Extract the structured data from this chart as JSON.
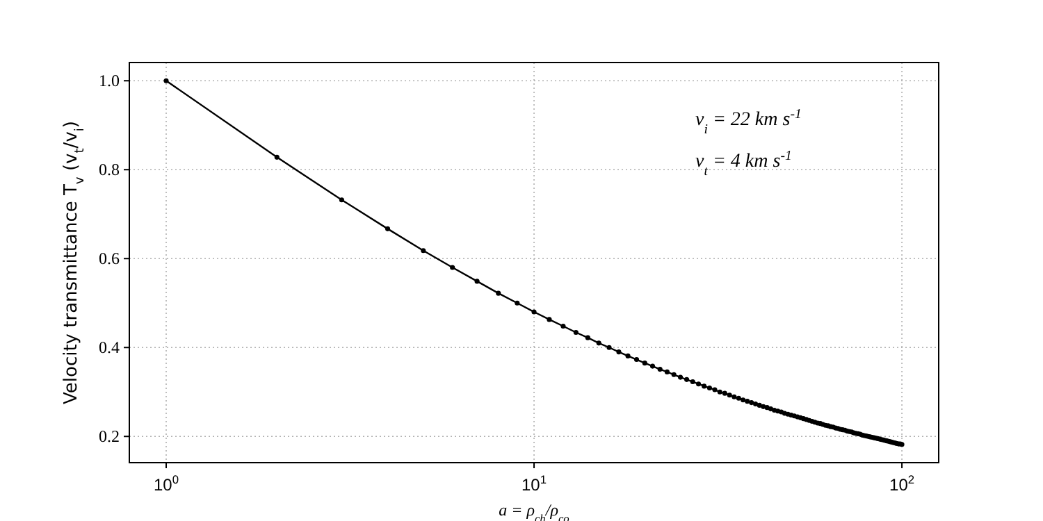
{
  "chart_data": {
    "type": "line",
    "xlabel": "a = ρ$_{ch}$/ρ$_{co}$",
    "ylabel": "Velocity transmittance T$_{v}$ (v$_{t}$/v$_{i}$)",
    "annotations": [
      "v$_{i}$ = 22 km s$^{-1}$",
      "v$_{t}$ = 4 km s$^{-1}$"
    ],
    "log": "x",
    "grid": true,
    "marker": "circle",
    "line_style": "solid",
    "xlim": [
      0.794,
      125.9
    ],
    "ylim": [
      0.141,
      1.041
    ],
    "xticks": [
      {
        "value": 1,
        "label": "10$^{0}$"
      },
      {
        "value": 10,
        "label": "10$^{1}$"
      },
      {
        "value": 100,
        "label": "10$^{2}$"
      }
    ],
    "yticks": [
      0.2,
      0.4,
      0.6,
      0.8,
      {
        "value": 1,
        "label": "1.0"
      }
    ],
    "x": [
      1,
      2,
      3,
      4,
      5,
      6,
      7,
      8,
      9,
      10,
      11,
      12,
      13,
      14,
      15,
      16,
      17,
      18,
      19,
      20,
      21,
      22,
      23,
      24,
      25,
      26,
      27,
      28,
      29,
      30,
      31,
      32,
      33,
      34,
      35,
      36,
      37,
      38,
      39,
      40,
      41,
      42,
      43,
      44,
      45,
      46,
      47,
      48,
      49,
      50,
      51,
      52,
      53,
      54,
      55,
      56,
      57,
      58,
      59,
      60,
      61,
      62,
      63,
      64,
      65,
      66,
      67,
      68,
      69,
      70,
      71,
      72,
      73,
      74,
      75,
      76,
      77,
      78,
      79,
      80,
      81,
      82,
      83,
      84,
      85,
      86,
      87,
      88,
      89,
      90,
      91,
      92,
      93,
      94,
      95,
      96,
      97,
      98,
      99,
      100
    ],
    "series": [
      {
        "color": "#000000",
        "values": [
          1.0,
          0.828,
          0.732,
          0.667,
          0.618,
          0.58,
          0.549,
          0.522,
          0.5,
          0.48,
          0.463,
          0.448,
          0.434,
          0.422,
          0.41,
          0.4,
          0.39,
          0.381,
          0.373,
          0.365,
          0.358,
          0.351,
          0.345,
          0.339,
          0.333,
          0.328,
          0.323,
          0.318,
          0.313,
          0.309,
          0.305,
          0.3,
          0.297,
          0.293,
          0.289,
          0.286,
          0.282,
          0.279,
          0.276,
          0.273,
          0.27,
          0.267,
          0.265,
          0.262,
          0.259,
          0.257,
          0.255,
          0.252,
          0.25,
          0.248,
          0.246,
          0.244,
          0.242,
          0.24,
          0.238,
          0.236,
          0.234,
          0.232,
          0.23,
          0.229,
          0.227,
          0.225,
          0.224,
          0.222,
          0.221,
          0.219,
          0.218,
          0.216,
          0.215,
          0.214,
          0.212,
          0.211,
          0.21,
          0.208,
          0.207,
          0.206,
          0.205,
          0.203,
          0.202,
          0.201,
          0.2,
          0.199,
          0.198,
          0.197,
          0.196,
          0.195,
          0.194,
          0.193,
          0.192,
          0.191,
          0.19,
          0.189,
          0.188,
          0.187,
          0.186,
          0.185,
          0.184,
          0.183,
          0.183,
          0.182
        ]
      }
    ]
  }
}
